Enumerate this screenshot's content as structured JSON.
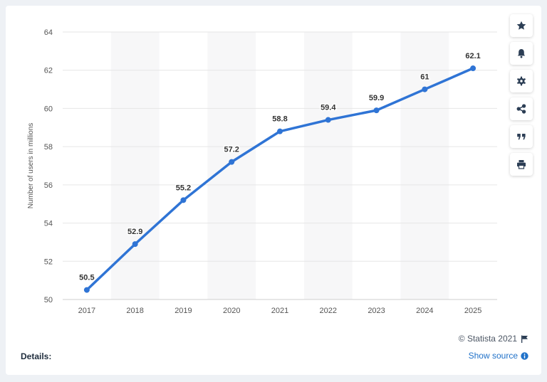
{
  "chart_data": {
    "type": "line",
    "categories": [
      "2017",
      "2018",
      "2019",
      "2020",
      "2021",
      "2022",
      "2023",
      "2024",
      "2025"
    ],
    "series": [
      {
        "values": [
          50.5,
          52.9,
          55.2,
          57.2,
          58.8,
          59.4,
          59.9,
          61,
          62.1
        ]
      }
    ],
    "data_labels": [
      "50.5",
      "52.9",
      "55.2",
      "57.2",
      "58.8",
      "59.4",
      "59.9",
      "61",
      "62.1"
    ],
    "title": "",
    "xlabel": "",
    "ylabel": "Number of users in millions",
    "ylim": [
      50,
      64
    ],
    "yticks": [
      50,
      52,
      54,
      56,
      58,
      60,
      62,
      64
    ],
    "ytick_labels": [
      "50",
      "52",
      "54",
      "56",
      "58",
      "60",
      "62",
      "64"
    ],
    "grid": true,
    "alternating_column_bands": true,
    "line_color": "#2f74d5",
    "band_color": "#f7f7f8",
    "grid_color": "#e6e6e6"
  },
  "toolbar": {
    "buttons": [
      {
        "name": "favorite",
        "icon": "star-icon"
      },
      {
        "name": "notify",
        "icon": "bell-icon"
      },
      {
        "name": "settings",
        "icon": "gear-icon"
      },
      {
        "name": "share",
        "icon": "share-icon"
      },
      {
        "name": "cite",
        "icon": "quote-icon"
      },
      {
        "name": "print",
        "icon": "print-icon"
      }
    ]
  },
  "footer": {
    "copyright": "© Statista 2021",
    "show_source": "Show source",
    "details": "Details:"
  }
}
